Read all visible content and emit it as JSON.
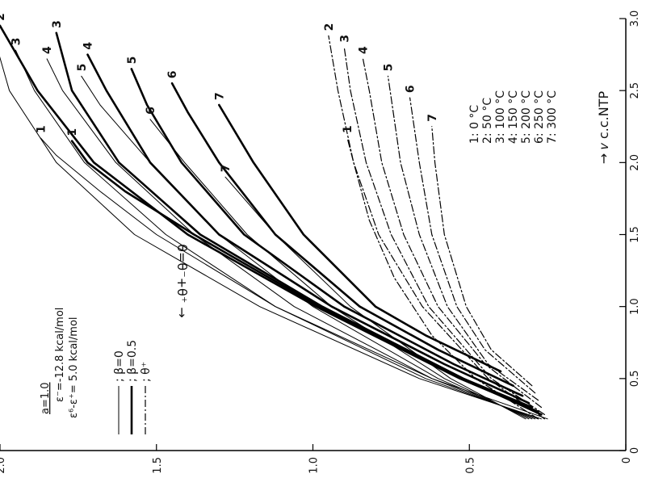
{
  "chart_data": {
    "type": "line",
    "xlabel": "→ 𝑣 c.c.NTP",
    "ylabel": "θ=θ⁻+θ⁺ →",
    "xlim": [
      0,
      3.0
    ],
    "ylim": [
      0,
      2.0
    ],
    "xticks": [
      "0",
      "0.5",
      "1.0",
      "1.5",
      "2.0",
      "2.5",
      "3.0"
    ],
    "yticks": [
      "0",
      "0.5",
      "1.0",
      "1.5",
      "2.0"
    ],
    "params": {
      "a": "a=1.0",
      "eps1": "ε⁻=-12.8  kcal/mol",
      "eps2": "ε⁶-ε⁺= 5.0  kcal/mol"
    },
    "style_legend": [
      {
        "label": "; β=0",
        "style": "thin"
      },
      {
        "label": "; β=0.5",
        "style": "thick"
      },
      {
        "label": "; θ⁺",
        "style": "dashdot"
      }
    ],
    "temperature_legend": [
      "1:   0 °C",
      "2:  50 °C",
      "3: 100 °C",
      "4: 150 °C",
      "5: 200 °C",
      "6: 250 °C",
      "7: 300 °C"
    ],
    "series": [
      {
        "curve": "1",
        "style": "thin",
        "points": [
          [
            0.22,
            0.25
          ],
          [
            0.5,
            0.62
          ],
          [
            1.0,
            1.12
          ],
          [
            1.5,
            1.5
          ],
          [
            1.8,
            1.68
          ],
          [
            2.05,
            1.82
          ],
          [
            2.17,
            1.87
          ]
        ]
      },
      {
        "curve": "2",
        "style": "thin",
        "points": [
          [
            0.22,
            0.27
          ],
          [
            0.5,
            0.66
          ],
          [
            1.0,
            1.17
          ],
          [
            1.5,
            1.57
          ],
          [
            2.0,
            1.82
          ],
          [
            2.5,
            1.97
          ],
          [
            2.88,
            2.02
          ]
        ]
      },
      {
        "curve": "3",
        "style": "thin",
        "points": [
          [
            0.22,
            0.28
          ],
          [
            0.5,
            0.64
          ],
          [
            1.0,
            1.12
          ],
          [
            1.5,
            1.47
          ],
          [
            2.0,
            1.73
          ],
          [
            2.5,
            1.89
          ],
          [
            2.78,
            1.95
          ]
        ]
      },
      {
        "curve": "4",
        "style": "thin",
        "points": [
          [
            0.22,
            0.29
          ],
          [
            0.5,
            0.62
          ],
          [
            1.0,
            1.06
          ],
          [
            1.5,
            1.38
          ],
          [
            2.0,
            1.63
          ],
          [
            2.5,
            1.8
          ],
          [
            2.72,
            1.85
          ]
        ]
      },
      {
        "curve": "5",
        "style": "thin",
        "points": [
          [
            0.22,
            0.3
          ],
          [
            0.5,
            0.6
          ],
          [
            1.0,
            1.0
          ],
          [
            1.5,
            1.3
          ],
          [
            2.0,
            1.52
          ],
          [
            2.4,
            1.68
          ],
          [
            2.6,
            1.74
          ]
        ]
      },
      {
        "curve": "6",
        "style": "thin",
        "points": [
          [
            0.22,
            0.31
          ],
          [
            0.5,
            0.58
          ],
          [
            1.0,
            0.94
          ],
          [
            1.5,
            1.21
          ],
          [
            2.0,
            1.41
          ],
          [
            2.3,
            1.52
          ]
        ]
      },
      {
        "curve": "7",
        "style": "thin",
        "points": [
          [
            0.22,
            0.32
          ],
          [
            0.5,
            0.56
          ],
          [
            1.0,
            0.88
          ],
          [
            1.5,
            1.12
          ],
          [
            1.9,
            1.28
          ]
        ]
      },
      {
        "curve": "1",
        "style": "thick",
        "points": [
          [
            0.25,
            0.27
          ],
          [
            0.5,
            0.52
          ],
          [
            1.0,
            0.98
          ],
          [
            1.5,
            1.38
          ],
          [
            1.8,
            1.6
          ],
          [
            2.0,
            1.72
          ],
          [
            2.15,
            1.77
          ]
        ]
      },
      {
        "curve": "2",
        "style": "thick",
        "points": [
          [
            0.27,
            0.28
          ],
          [
            0.5,
            0.53
          ],
          [
            1.0,
            0.99
          ],
          [
            1.5,
            1.4
          ],
          [
            2.0,
            1.7
          ],
          [
            2.5,
            1.88
          ],
          [
            2.95,
            2.0
          ]
        ]
      },
      {
        "curve": "3",
        "style": "thick",
        "points": [
          [
            0.3,
            0.3
          ],
          [
            0.5,
            0.52
          ],
          [
            1.0,
            0.97
          ],
          [
            1.5,
            1.36
          ],
          [
            2.0,
            1.62
          ],
          [
            2.5,
            1.77
          ],
          [
            2.9,
            1.82
          ]
        ]
      },
      {
        "curve": "4",
        "style": "thick",
        "points": [
          [
            0.33,
            0.31
          ],
          [
            0.6,
            0.58
          ],
          [
            1.0,
            0.94
          ],
          [
            1.5,
            1.3
          ],
          [
            2.0,
            1.52
          ],
          [
            2.5,
            1.66
          ],
          [
            2.75,
            1.72
          ]
        ]
      },
      {
        "curve": "5",
        "style": "thick",
        "points": [
          [
            0.38,
            0.33
          ],
          [
            0.6,
            0.55
          ],
          [
            1.0,
            0.9
          ],
          [
            1.5,
            1.22
          ],
          [
            2.0,
            1.42
          ],
          [
            2.4,
            1.53
          ],
          [
            2.65,
            1.58
          ]
        ]
      },
      {
        "curve": "6",
        "style": "thick",
        "points": [
          [
            0.45,
            0.36
          ],
          [
            0.7,
            0.6
          ],
          [
            1.0,
            0.85
          ],
          [
            1.5,
            1.12
          ],
          [
            2.0,
            1.3
          ],
          [
            2.35,
            1.4
          ],
          [
            2.55,
            1.45
          ]
        ]
      },
      {
        "curve": "7",
        "style": "thick",
        "points": [
          [
            0.55,
            0.4
          ],
          [
            0.8,
            0.64
          ],
          [
            1.0,
            0.8
          ],
          [
            1.5,
            1.03
          ],
          [
            2.0,
            1.19
          ],
          [
            2.4,
            1.3
          ]
        ]
      },
      {
        "curve": "1",
        "style": "dashdot",
        "points": [
          [
            0.22,
            0.28
          ],
          [
            0.5,
            0.48
          ],
          [
            0.8,
            0.62
          ],
          [
            1.2,
            0.74
          ],
          [
            1.6,
            0.82
          ],
          [
            2.0,
            0.87
          ],
          [
            2.17,
            0.89
          ]
        ]
      },
      {
        "curve": "2",
        "style": "dashdot",
        "points": [
          [
            0.22,
            0.26
          ],
          [
            0.5,
            0.44
          ],
          [
            1.0,
            0.65
          ],
          [
            1.5,
            0.79
          ],
          [
            2.0,
            0.87
          ],
          [
            2.5,
            0.92
          ],
          [
            2.88,
            0.95
          ]
        ]
      },
      {
        "curve": "3",
        "style": "dashdot",
        "points": [
          [
            0.25,
            0.26
          ],
          [
            0.5,
            0.43
          ],
          [
            1.0,
            0.63
          ],
          [
            1.5,
            0.75
          ],
          [
            2.0,
            0.83
          ],
          [
            2.5,
            0.88
          ],
          [
            2.8,
            0.9
          ]
        ]
      },
      {
        "curve": "4",
        "style": "dashdot",
        "points": [
          [
            0.3,
            0.27
          ],
          [
            0.6,
            0.45
          ],
          [
            1.0,
            0.6
          ],
          [
            1.5,
            0.71
          ],
          [
            2.0,
            0.78
          ],
          [
            2.5,
            0.82
          ],
          [
            2.72,
            0.84
          ]
        ]
      },
      {
        "curve": "5",
        "style": "dashdot",
        "points": [
          [
            0.35,
            0.28
          ],
          [
            0.6,
            0.44
          ],
          [
            1.0,
            0.57
          ],
          [
            1.5,
            0.66
          ],
          [
            2.0,
            0.72
          ],
          [
            2.45,
            0.75
          ],
          [
            2.6,
            0.76
          ]
        ]
      },
      {
        "curve": "6",
        "style": "dashdot",
        "points": [
          [
            0.4,
            0.29
          ],
          [
            0.7,
            0.45
          ],
          [
            1.0,
            0.54
          ],
          [
            1.5,
            0.62
          ],
          [
            2.0,
            0.66
          ],
          [
            2.3,
            0.68
          ],
          [
            2.45,
            0.69
          ]
        ]
      },
      {
        "curve": "7",
        "style": "dashdot",
        "points": [
          [
            0.45,
            0.3
          ],
          [
            0.7,
            0.43
          ],
          [
            1.0,
            0.51
          ],
          [
            1.5,
            0.58
          ],
          [
            2.0,
            0.61
          ],
          [
            2.25,
            0.62
          ]
        ]
      }
    ]
  }
}
